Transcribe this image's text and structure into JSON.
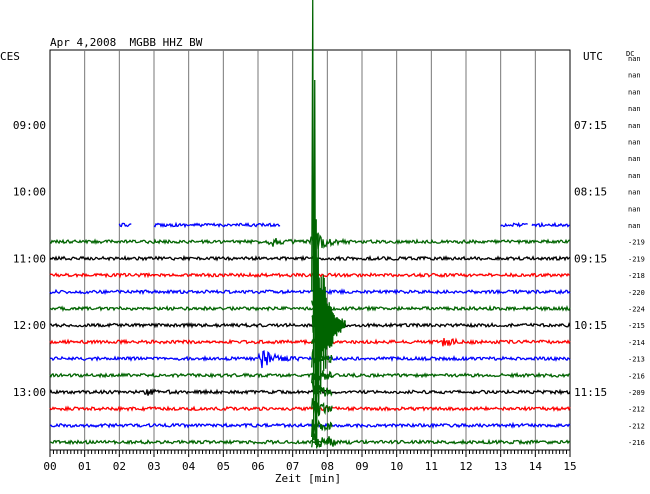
{
  "chart_data": {
    "type": "line",
    "title": "Apr 4,2008  MGBB HHZ BW",
    "xlabel": "Zeit [min]",
    "left_axis_label": "CES",
    "right_axis_label": "UTC",
    "dc_label": "DC",
    "xlim": [
      0,
      15
    ],
    "x_ticks": [
      {
        "value": 0,
        "label": "00"
      },
      {
        "value": 1,
        "label": "01"
      },
      {
        "value": 2,
        "label": "02"
      },
      {
        "value": 3,
        "label": "03"
      },
      {
        "value": 4,
        "label": "04"
      },
      {
        "value": 5,
        "label": "05"
      },
      {
        "value": 6,
        "label": "06"
      },
      {
        "value": 7,
        "label": "07"
      },
      {
        "value": 8,
        "label": "08"
      },
      {
        "value": 9,
        "label": "09"
      },
      {
        "value": 10,
        "label": "10"
      },
      {
        "value": 11,
        "label": "11"
      },
      {
        "value": 12,
        "label": "12"
      },
      {
        "value": 13,
        "label": "13"
      },
      {
        "value": 14,
        "label": "14"
      },
      {
        "value": 15,
        "label": "15"
      }
    ],
    "left_time_labels": [
      {
        "row": 4,
        "label": "09:00"
      },
      {
        "row": 8,
        "label": "10:00"
      },
      {
        "row": 12,
        "label": "11:00"
      },
      {
        "row": 16,
        "label": "12:00"
      },
      {
        "row": 20,
        "label": "13:00"
      }
    ],
    "right_time_labels": [
      {
        "row": 4,
        "label": "07:15"
      },
      {
        "row": 8,
        "label": "08:15"
      },
      {
        "row": 12,
        "label": "09:15"
      },
      {
        "row": 16,
        "label": "10:15"
      },
      {
        "row": 20,
        "label": "11:15"
      }
    ],
    "rows": [
      {
        "dc": "nan",
        "color": "",
        "segments": [],
        "events": []
      },
      {
        "dc": "nan",
        "color": "",
        "segments": [],
        "events": []
      },
      {
        "dc": "nan",
        "color": "",
        "segments": [],
        "events": []
      },
      {
        "dc": "nan",
        "color": "",
        "segments": [],
        "events": []
      },
      {
        "dc": "nan",
        "color": "",
        "segments": [],
        "events": []
      },
      {
        "dc": "nan",
        "color": "",
        "segments": [],
        "events": []
      },
      {
        "dc": "nan",
        "color": "",
        "segments": [],
        "events": []
      },
      {
        "dc": "nan",
        "color": "",
        "segments": [],
        "events": []
      },
      {
        "dc": "nan",
        "color": "",
        "segments": [],
        "events": []
      },
      {
        "dc": "nan",
        "color": "",
        "segments": [],
        "events": []
      },
      {
        "dc": "nan",
        "color": "#0000ff",
        "segments": [
          [
            2.0,
            2.35
          ],
          [
            3.0,
            6.65
          ],
          [
            13.0,
            13.8
          ],
          [
            13.9,
            15.0
          ]
        ],
        "events": []
      },
      {
        "dc": "-219",
        "color": "#006400",
        "segments": [
          [
            0,
            15
          ]
        ],
        "events": [
          {
            "t": 6.4,
            "amp": 4
          },
          {
            "t": 7.6,
            "amp": 12
          }
        ]
      },
      {
        "dc": "-219",
        "color": "#000000",
        "segments": [
          [
            0,
            15
          ]
        ],
        "events": []
      },
      {
        "dc": "-218",
        "color": "#ff0000",
        "segments": [
          [
            0,
            15
          ]
        ],
        "events": []
      },
      {
        "dc": "-220",
        "color": "#0000ff",
        "segments": [
          [
            0,
            15
          ]
        ],
        "events": []
      },
      {
        "dc": "-224",
        "color": "#006400",
        "segments": [
          [
            0,
            15
          ]
        ],
        "events": []
      },
      {
        "dc": "-215",
        "color": "#000000",
        "segments": [
          [
            0,
            15
          ]
        ],
        "events": []
      },
      {
        "dc": "-214",
        "color": "#ff0000",
        "segments": [
          [
            0,
            15
          ]
        ],
        "events": [
          {
            "t": 11.3,
            "amp": 4
          }
        ]
      },
      {
        "dc": "-213",
        "color": "#0000ff",
        "segments": [
          [
            0,
            15
          ]
        ],
        "events": [
          {
            "t": 6.1,
            "amp": 11
          }
        ]
      },
      {
        "dc": "-216",
        "color": "#006400",
        "segments": [
          [
            0,
            15
          ]
        ],
        "events": []
      },
      {
        "dc": "-209",
        "color": "#000000",
        "segments": [
          [
            0,
            15
          ]
        ],
        "events": [
          {
            "t": 2.8,
            "amp": 3
          }
        ]
      },
      {
        "dc": "-212",
        "color": "#ff0000",
        "segments": [
          [
            0,
            15
          ]
        ],
        "events": []
      },
      {
        "dc": "-212",
        "color": "#0000ff",
        "segments": [
          [
            0,
            15
          ]
        ],
        "events": []
      },
      {
        "dc": "-216",
        "color": "#006400",
        "segments": [
          [
            0,
            15
          ]
        ],
        "events": [
          {
            "t": 8.0,
            "amp": 6
          }
        ]
      }
    ],
    "earthquake": {
      "row": 14,
      "t": 7.55,
      "color": "#006400"
    }
  }
}
